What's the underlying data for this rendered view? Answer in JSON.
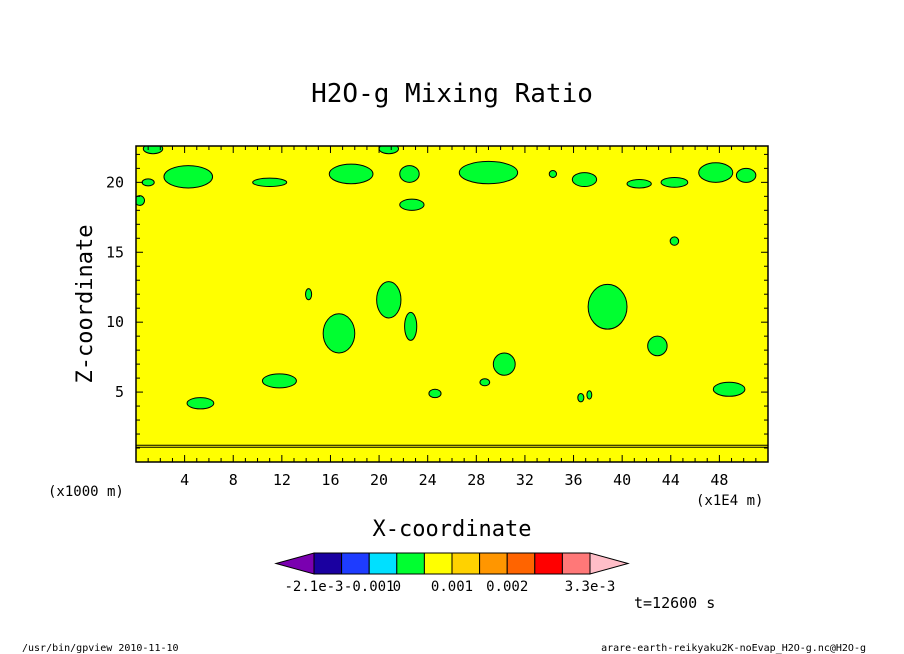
{
  "chart_data": {
    "type": "contour",
    "title": "H2O-g Mixing Ratio",
    "xlabel": "X-coordinate",
    "ylabel": "Z-coordinate",
    "x_unit_left": "(x1000 m)",
    "x_unit_right": "(x1E4 m)",
    "xlim": [
      0,
      52
    ],
    "ylim": [
      0,
      22.6
    ],
    "x_ticks": [
      4,
      8,
      12,
      16,
      20,
      24,
      28,
      32,
      36,
      40,
      44,
      48
    ],
    "y_ticks": [
      5,
      10,
      15,
      20
    ],
    "background_level": {
      "range": "0 .. 0.001",
      "color": "#ffff00"
    },
    "horizontal_line_z": 1.2,
    "patches": [
      {
        "level": "-0.001 .. 0",
        "color": "#00ff30",
        "cx": 16.7,
        "cz": 9.2,
        "rx": 1.3,
        "rz": 1.4
      },
      {
        "level": "-0.001 .. 0",
        "color": "#00ff30",
        "cx": 20.8,
        "cz": 11.6,
        "rx": 1.0,
        "rz": 1.3
      },
      {
        "level": "-0.001 .. 0",
        "color": "#00ff30",
        "cx": 22.6,
        "cz": 9.7,
        "rx": 0.5,
        "rz": 1.0
      },
      {
        "level": "-0.001 .. 0",
        "color": "#00ff30",
        "cx": 14.2,
        "cz": 12.0,
        "rx": 0.25,
        "rz": 0.4
      },
      {
        "level": "-0.001 .. 0",
        "color": "#00ff30",
        "cx": 11.8,
        "cz": 5.8,
        "rx": 1.4,
        "rz": 0.5
      },
      {
        "level": "-0.001 .. 0",
        "color": "#00ff30",
        "cx": 5.3,
        "cz": 4.2,
        "rx": 1.1,
        "rz": 0.4
      },
      {
        "level": "-0.001 .. 0",
        "color": "#00ff30",
        "cx": 24.6,
        "cz": 4.9,
        "rx": 0.5,
        "rz": 0.3
      },
      {
        "level": "-0.001 .. 0",
        "color": "#00ff30",
        "cx": 30.3,
        "cz": 7.0,
        "rx": 0.9,
        "rz": 0.8
      },
      {
        "level": "-0.001 .. 0",
        "color": "#00ff30",
        "cx": 28.7,
        "cz": 5.7,
        "rx": 0.4,
        "rz": 0.25
      },
      {
        "level": "-0.001 .. 0",
        "color": "#00ff30",
        "cx": 38.8,
        "cz": 11.1,
        "rx": 1.6,
        "rz": 1.6
      },
      {
        "level": "-0.001 .. 0",
        "color": "#00ff30",
        "cx": 42.9,
        "cz": 8.3,
        "rx": 0.8,
        "rz": 0.7
      },
      {
        "level": "-0.001 .. 0",
        "color": "#00ff30",
        "cx": 48.8,
        "cz": 5.2,
        "rx": 1.3,
        "rz": 0.5
      },
      {
        "level": "-0.001 .. 0",
        "color": "#00ff30",
        "cx": 36.6,
        "cz": 4.6,
        "rx": 0.25,
        "rz": 0.3
      },
      {
        "level": "-0.001 .. 0",
        "color": "#00ff30",
        "cx": 37.3,
        "cz": 4.8,
        "rx": 0.2,
        "rz": 0.3
      },
      {
        "level": "-0.001 .. 0",
        "color": "#00ff30",
        "cx": 44.3,
        "cz": 15.8,
        "rx": 0.35,
        "rz": 0.3
      },
      {
        "level": "-0.001 .. 0",
        "color": "#00ff30",
        "cx": 22.7,
        "cz": 18.4,
        "rx": 1.0,
        "rz": 0.4
      },
      {
        "level": "-0.001 .. 0",
        "color": "#00ff30",
        "cx": 1.4,
        "cz": 22.4,
        "rx": 0.8,
        "rz": 0.35
      },
      {
        "level": "-0.001 .. 0",
        "color": "#00ff30",
        "cx": 0.3,
        "cz": 18.7,
        "rx": 0.4,
        "rz": 0.35
      },
      {
        "level": "-0.001 .. 0",
        "color": "#00ff30",
        "cx": 20.8,
        "cz": 22.4,
        "rx": 0.8,
        "rz": 0.35
      },
      {
        "level": "-0.001 .. 0",
        "color": "#00ff30",
        "cx": 4.3,
        "cz": 20.4,
        "rx": 2.0,
        "rz": 0.8
      },
      {
        "level": "-0.001 .. 0",
        "color": "#00ff30",
        "cx": 11.0,
        "cz": 20.0,
        "rx": 1.4,
        "rz": 0.3
      },
      {
        "level": "-0.001 .. 0",
        "color": "#00ff30",
        "cx": 17.7,
        "cz": 20.6,
        "rx": 1.8,
        "rz": 0.7
      },
      {
        "level": "-0.001 .. 0",
        "color": "#00ff30",
        "cx": 22.5,
        "cz": 20.6,
        "rx": 0.8,
        "rz": 0.6
      },
      {
        "level": "-0.001 .. 0",
        "color": "#00ff30",
        "cx": 29.0,
        "cz": 20.7,
        "rx": 2.4,
        "rz": 0.8
      },
      {
        "level": "-0.001 .. 0",
        "color": "#00ff30",
        "cx": 34.3,
        "cz": 20.6,
        "rx": 0.3,
        "rz": 0.25
      },
      {
        "level": "-0.001 .. 0",
        "color": "#00ff30",
        "cx": 36.9,
        "cz": 20.2,
        "rx": 1.0,
        "rz": 0.5
      },
      {
        "level": "-0.001 .. 0",
        "color": "#00ff30",
        "cx": 41.4,
        "cz": 19.9,
        "rx": 1.0,
        "rz": 0.3
      },
      {
        "level": "-0.001 .. 0",
        "color": "#00ff30",
        "cx": 44.3,
        "cz": 20.0,
        "rx": 1.1,
        "rz": 0.35
      },
      {
        "level": "-0.001 .. 0",
        "color": "#00ff30",
        "cx": 47.7,
        "cz": 20.7,
        "rx": 1.4,
        "rz": 0.7
      },
      {
        "level": "-0.001 .. 0",
        "color": "#00ff30",
        "cx": 50.2,
        "cz": 20.5,
        "rx": 0.8,
        "rz": 0.5
      },
      {
        "level": "-0.001 .. 0",
        "color": "#00ff30",
        "cx": 1.0,
        "cz": 20.0,
        "rx": 0.5,
        "rz": 0.25
      }
    ],
    "colorbar": {
      "colors": [
        "#7a00b0",
        "#1a00a0",
        "#1e3cff",
        "#00e0ff",
        "#00ff30",
        "#ffff00",
        "#ffd200",
        "#ff9600",
        "#ff6400",
        "#ff0000",
        "#ff7878",
        "#ffbec8"
      ],
      "tick_labels": [
        "-2.1e-3",
        "-0.001",
        "0",
        "0.001",
        "0.002",
        "3.3e-3"
      ]
    },
    "time_label": "t=12600 s",
    "footer_left": "/usr/bin/gpview   2010-11-10",
    "footer_right": "arare-earth-reikyaku2K-noEvap_H2O-g.nc@H2O-g"
  }
}
